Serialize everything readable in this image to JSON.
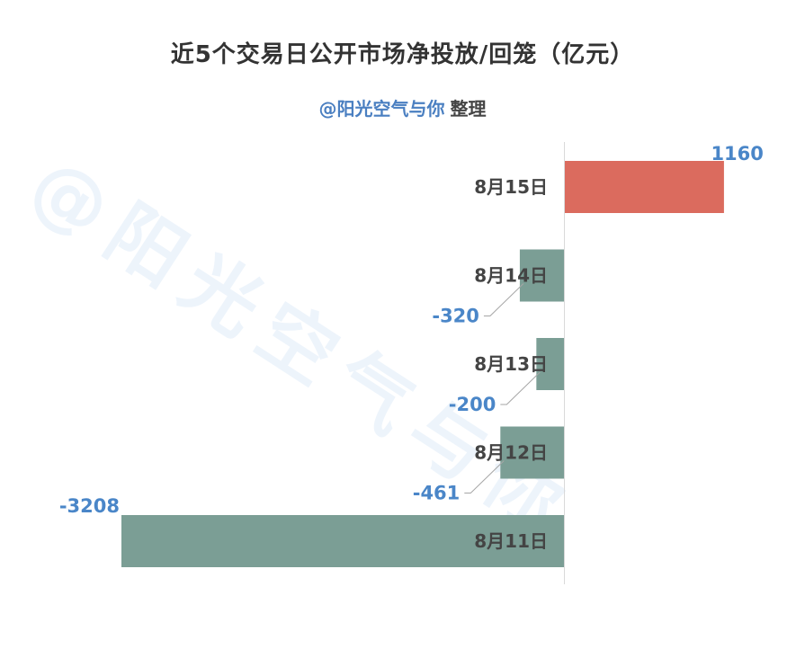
{
  "title": "近5个交易日公开市场净投放/回笼（亿元）",
  "subtitle": {
    "credit": "@阳光空气与你",
    "suffix": "整理"
  },
  "watermark": "@阳光空气与你",
  "colors": {
    "positive_bar": "#db6b5e",
    "negative_bar": "#7b9e95",
    "value_label": "#4a86c8",
    "category_label": "#444444",
    "axis": "#d9d9d9",
    "leader_line": "#a6a6a6"
  },
  "chart_data": {
    "type": "bar",
    "orientation": "horizontal",
    "categories": [
      "8月15日",
      "8月14日",
      "8月13日",
      "8月12日",
      "8月11日"
    ],
    "values": [
      1160,
      -320,
      -200,
      -461,
      -3208
    ],
    "value_labels": [
      "1160",
      "-320",
      "-200",
      "-461",
      "-3208"
    ],
    "title": "近5个交易日公开市场净投放/回笼（亿元）",
    "xlabel": "",
    "ylabel": "",
    "xlim": [
      -3300,
      1700
    ],
    "grid": false,
    "legend": "none"
  }
}
